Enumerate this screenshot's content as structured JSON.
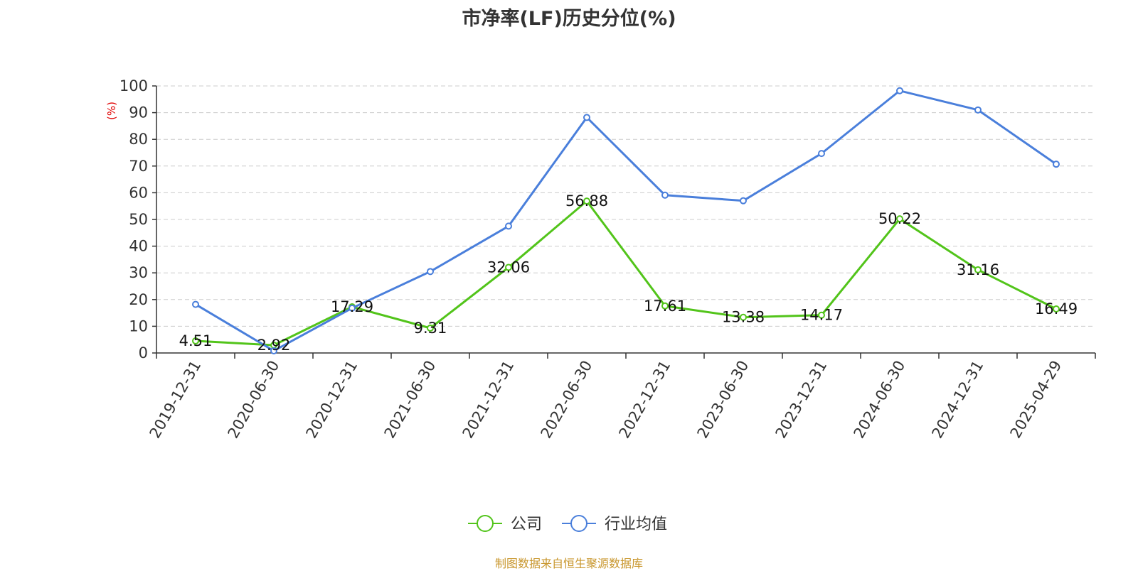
{
  "chart_data": {
    "type": "line",
    "title": "市净率(LF)历史分位(%)",
    "ylabel": "(%)",
    "xlabel": "",
    "ylim": [
      0,
      100
    ],
    "yticks": [
      0,
      10,
      20,
      30,
      40,
      50,
      60,
      70,
      80,
      90,
      100
    ],
    "grid": true,
    "legend_position": "bottom-center",
    "categories": [
      "2019-12-31",
      "2020-06-30",
      "2020-12-31",
      "2021-06-30",
      "2021-12-31",
      "2022-06-30",
      "2022-12-31",
      "2023-06-30",
      "2023-12-31",
      "2024-06-30",
      "2024-12-31",
      "2025-04-29"
    ],
    "series": [
      {
        "name": "公司",
        "color": "#52c41a",
        "show_labels": true,
        "values": [
          4.51,
          2.92,
          17.29,
          9.31,
          32.06,
          56.88,
          17.61,
          13.38,
          14.17,
          50.22,
          31.16,
          16.49
        ]
      },
      {
        "name": "行业均值",
        "color": "#4a7fdb",
        "show_labels": false,
        "values": [
          18.2,
          0.8,
          16.8,
          30.5,
          47.5,
          88.2,
          59.1,
          57.0,
          74.7,
          98.2,
          91.0,
          70.7
        ]
      }
    ]
  },
  "source_text": "制图数据来自恒生聚源数据库"
}
